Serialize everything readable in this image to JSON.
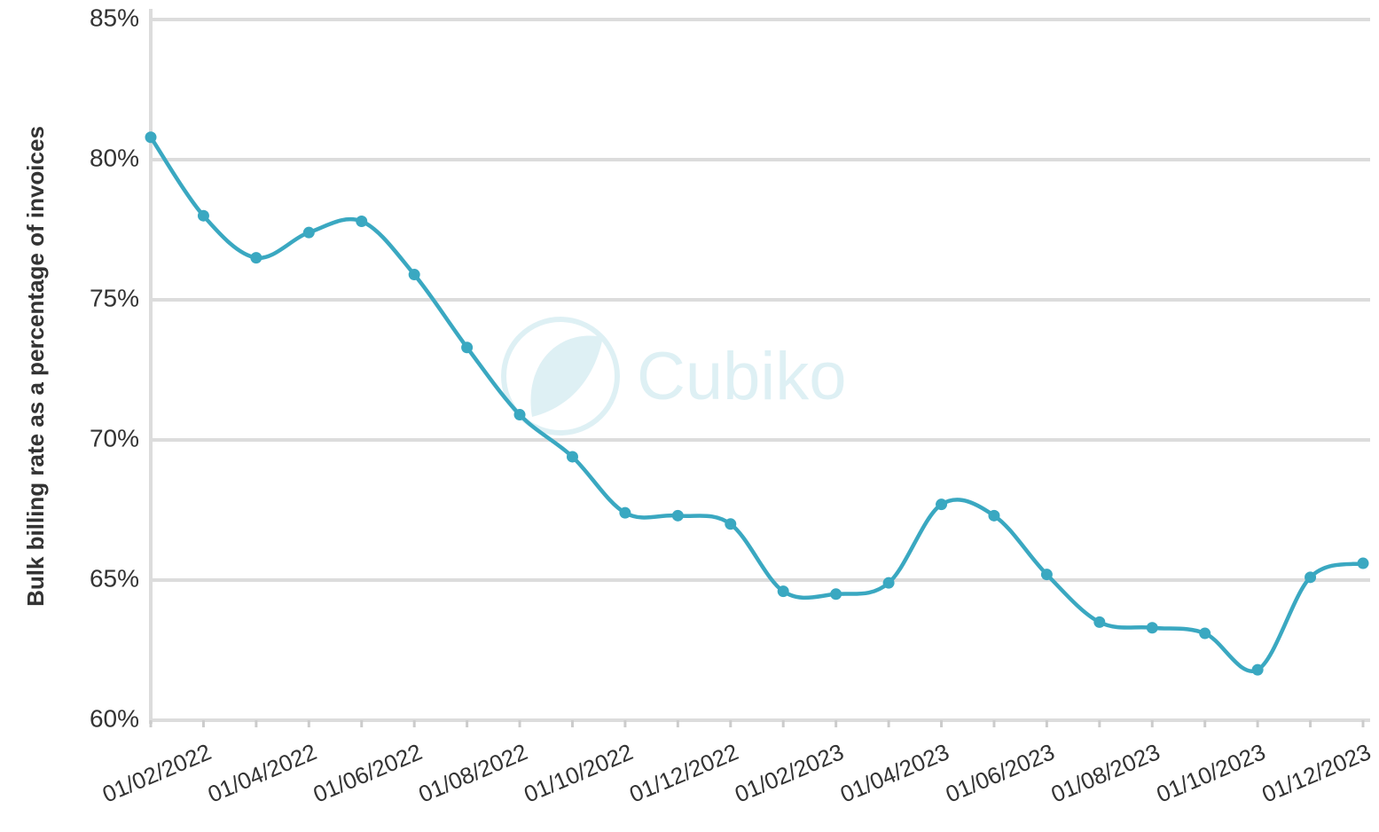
{
  "chart_data": {
    "type": "line",
    "y_label": "Bulk billing rate as a percentage of invoices",
    "watermark": "Cubiko",
    "categories": [
      null,
      "01/02/2022",
      null,
      "01/04/2022",
      null,
      "01/06/2022",
      null,
      "01/08/2022",
      null,
      "01/10/2022",
      null,
      "01/12/2022",
      null,
      "01/02/2023",
      null,
      "01/04/2023",
      null,
      "01/06/2023",
      null,
      "01/08/2023",
      null,
      "01/10/2023",
      null,
      "01/12/2023"
    ],
    "series": [
      {
        "color": "#3aa8c1",
        "values": [
          80.8,
          78.0,
          76.5,
          77.4,
          77.8,
          75.9,
          73.3,
          70.9,
          69.4,
          67.4,
          67.3,
          67.0,
          64.6,
          64.5,
          64.9,
          67.7,
          67.3,
          65.2,
          63.5,
          63.3,
          63.1,
          61.8,
          65.1,
          65.6
        ]
      }
    ],
    "ylim": [
      60,
      85
    ],
    "yticks": [
      {
        "value": 60,
        "label": "60%"
      },
      {
        "value": 65,
        "label": "65%"
      },
      {
        "value": 70,
        "label": "70%"
      },
      {
        "value": 75,
        "label": "75%"
      },
      {
        "value": 80,
        "label": "80%"
      },
      {
        "value": 85,
        "label": "85%"
      }
    ],
    "grid": true
  }
}
